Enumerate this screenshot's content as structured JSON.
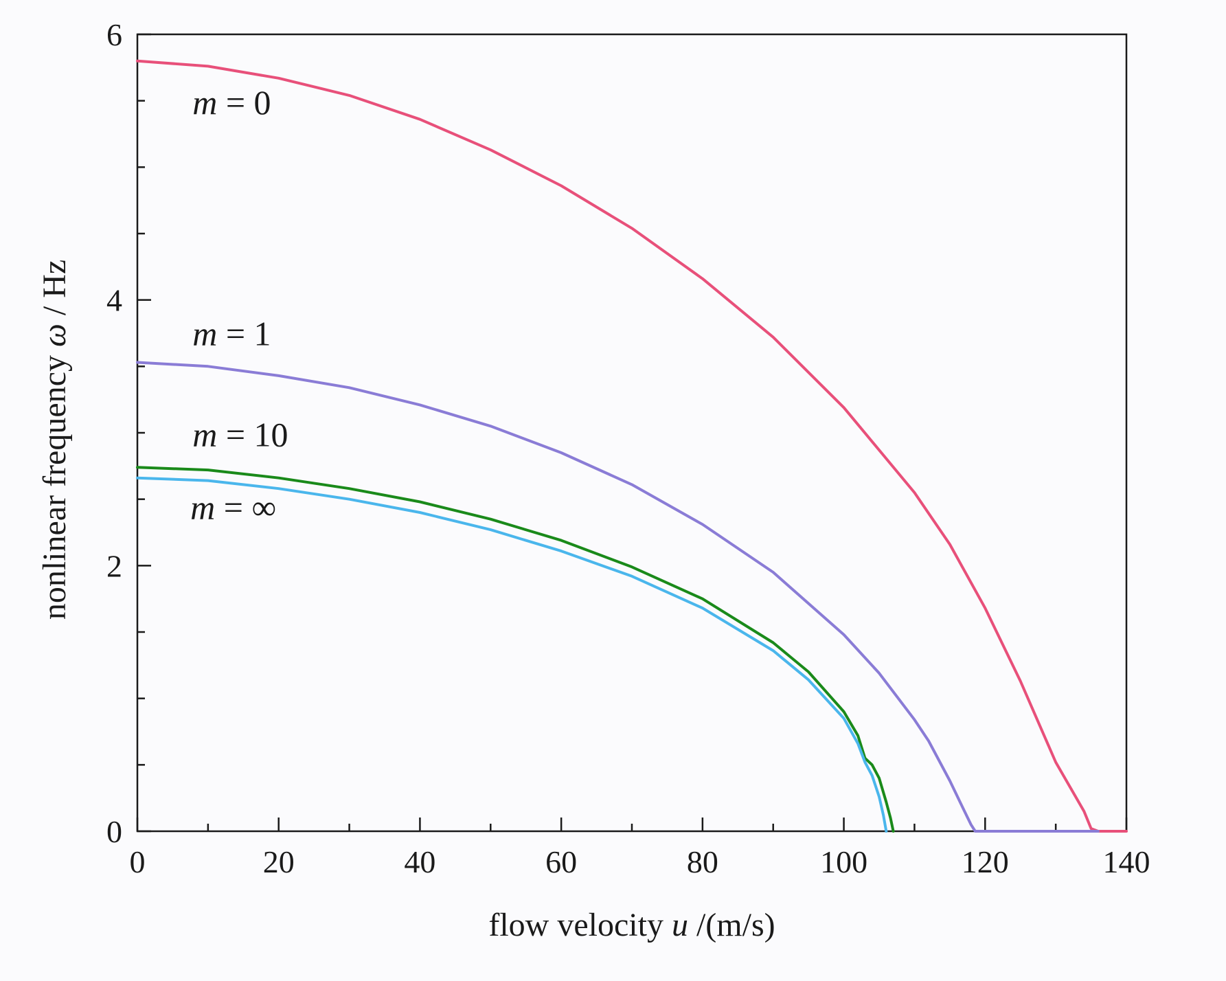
{
  "chart_data": {
    "type": "line",
    "xlabel": {
      "prefix": "flow velocity ",
      "var": "u",
      "suffix": " /(m/s)"
    },
    "ylabel": {
      "prefix": "nonlinear frequency ",
      "var": "ω",
      "suffix": " / Hz"
    },
    "xlim": [
      0,
      140
    ],
    "ylim": [
      0,
      6
    ],
    "x_major_ticks": [
      0,
      20,
      40,
      60,
      80,
      100,
      120,
      140
    ],
    "x_minor_ticks": [
      10,
      30,
      50,
      70,
      90,
      110,
      130
    ],
    "y_major_ticks": [
      0,
      2,
      4,
      6
    ],
    "y_minor_ticks": [
      0.5,
      1,
      1.5,
      2.5,
      3,
      3.5,
      4.5,
      5,
      5.5
    ],
    "grid": false,
    "series": [
      {
        "name_var": "m",
        "name_rest": " = 0",
        "color": "#e8507a",
        "label_at": [
          7.8,
          5.4
        ],
        "points": [
          [
            0,
            5.8
          ],
          [
            10,
            5.76
          ],
          [
            20,
            5.67
          ],
          [
            30,
            5.54
          ],
          [
            40,
            5.36
          ],
          [
            50,
            5.13
          ],
          [
            60,
            4.86
          ],
          [
            70,
            4.54
          ],
          [
            80,
            4.16
          ],
          [
            90,
            3.72
          ],
          [
            100,
            3.19
          ],
          [
            110,
            2.55
          ],
          [
            115,
            2.16
          ],
          [
            120,
            1.68
          ],
          [
            125,
            1.13
          ],
          [
            130,
            0.52
          ],
          [
            134,
            0.15
          ],
          [
            135,
            0.02
          ],
          [
            136,
            0
          ],
          [
            140,
            0
          ]
        ]
      },
      {
        "name_var": "m",
        "name_rest": " = 1",
        "color": "#8a7cd6",
        "label_at": [
          7.8,
          3.66
        ],
        "points": [
          [
            0,
            3.53
          ],
          [
            10,
            3.5
          ],
          [
            20,
            3.43
          ],
          [
            30,
            3.34
          ],
          [
            40,
            3.21
          ],
          [
            50,
            3.05
          ],
          [
            60,
            2.85
          ],
          [
            70,
            2.61
          ],
          [
            80,
            2.31
          ],
          [
            90,
            1.95
          ],
          [
            100,
            1.48
          ],
          [
            105,
            1.19
          ],
          [
            110,
            0.84
          ],
          [
            112,
            0.68
          ],
          [
            115,
            0.38
          ],
          [
            117,
            0.16
          ],
          [
            118,
            0.05
          ],
          [
            118.6,
            0
          ],
          [
            136,
            0
          ]
        ]
      },
      {
        "name_var": "m",
        "name_rest": " = 10",
        "color": "#1a8a1a",
        "label_at": [
          7.8,
          2.9
        ],
        "points": [
          [
            0,
            2.74
          ],
          [
            10,
            2.72
          ],
          [
            20,
            2.66
          ],
          [
            30,
            2.58
          ],
          [
            40,
            2.48
          ],
          [
            50,
            2.35
          ],
          [
            60,
            2.19
          ],
          [
            70,
            1.99
          ],
          [
            80,
            1.75
          ],
          [
            90,
            1.42
          ],
          [
            95,
            1.2
          ],
          [
            100,
            0.9
          ],
          [
            102,
            0.72
          ],
          [
            103,
            0.55
          ],
          [
            104,
            0.5
          ],
          [
            105,
            0.4
          ],
          [
            106,
            0.22
          ],
          [
            106.6,
            0.1
          ],
          [
            107,
            0
          ]
        ]
      },
      {
        "name_var": "m",
        "name_rest": " = ∞",
        "color": "#4ab6ec",
        "label_at": [
          7.5,
          2.35
        ],
        "points": [
          [
            0,
            2.66
          ],
          [
            10,
            2.64
          ],
          [
            20,
            2.58
          ],
          [
            30,
            2.5
          ],
          [
            40,
            2.4
          ],
          [
            50,
            2.27
          ],
          [
            60,
            2.11
          ],
          [
            70,
            1.92
          ],
          [
            80,
            1.68
          ],
          [
            90,
            1.36
          ],
          [
            95,
            1.14
          ],
          [
            100,
            0.85
          ],
          [
            102,
            0.66
          ],
          [
            103,
            0.52
          ],
          [
            104,
            0.42
          ],
          [
            105,
            0.26
          ],
          [
            105.6,
            0.12
          ],
          [
            106,
            0
          ]
        ]
      }
    ]
  }
}
